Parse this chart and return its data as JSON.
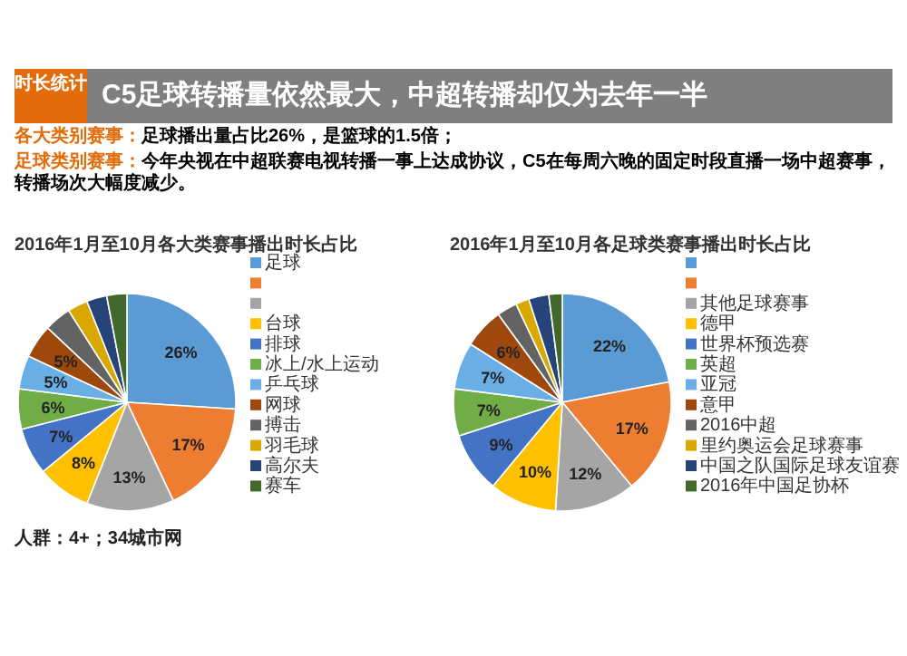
{
  "chart_data": [
    {
      "type": "other",
      "title": "C5足球转播量依然最大，中超转播却仅为去年一半",
      "annotations": [
        "时长统计",
        "各大类别赛事：足球播出量占比26%，是篮球的1.5倍；",
        "足球类别赛事：今年央视在中超联赛电视转播一事上达成协议，C5在每周六晚的固定时段直播一场中超赛事，转播场次大幅度减少。"
      ]
    },
    {
      "type": "pie",
      "title": "2016年1月至10月各大类赛事播出时长占比",
      "legend": "right",
      "categories": [
        "足球",
        null,
        null,
        "台球",
        "排球",
        "冰上/水上运动",
        "乒乓球",
        "网球",
        "搏击",
        "羽毛球",
        "高尔夫",
        "赛车"
      ],
      "values": [
        26,
        17,
        13,
        8,
        7,
        6,
        5,
        5,
        4,
        3,
        3,
        3
      ],
      "value_labels": [
        "26%",
        "17%",
        "13%",
        "8%",
        "7%",
        "6%",
        "5%",
        "5%",
        null,
        null,
        null,
        null
      ],
      "colors": [
        "#5b9bd5",
        "#ed7d31",
        "#a5a5a5",
        "#ffc000",
        "#4472c4",
        "#70ad47",
        "#6aaee6",
        "#9e480e",
        "#636363",
        "#d9a800",
        "#264478",
        "#43682b"
      ],
      "annotations": [
        "人群：4+；34城市网"
      ]
    },
    {
      "type": "pie",
      "title": "2016年1月至10月各足球类赛事播出时长占比",
      "legend": "right",
      "categories": [
        null,
        null,
        "其他足球赛事",
        "德甲",
        "世界杯预选赛",
        "英超",
        "亚冠",
        "意甲",
        "2016中超",
        "里约奥运会足球赛事",
        "中国之队国际足球友谊赛",
        "2016年中国足协杯"
      ],
      "values": [
        22,
        17,
        12,
        10,
        9,
        7,
        7,
        6,
        3,
        2,
        3,
        2
      ],
      "value_labels": [
        "22%",
        "17%",
        "12%",
        "10%",
        "9%",
        "7%",
        "7%",
        "6%",
        null,
        null,
        null,
        null
      ],
      "colors": [
        "#5b9bd5",
        "#ed7d31",
        "#a5a5a5",
        "#ffc000",
        "#4472c4",
        "#70ad47",
        "#6aaee6",
        "#9e480e",
        "#636363",
        "#d9a800",
        "#264478",
        "#43682b"
      ]
    }
  ]
}
